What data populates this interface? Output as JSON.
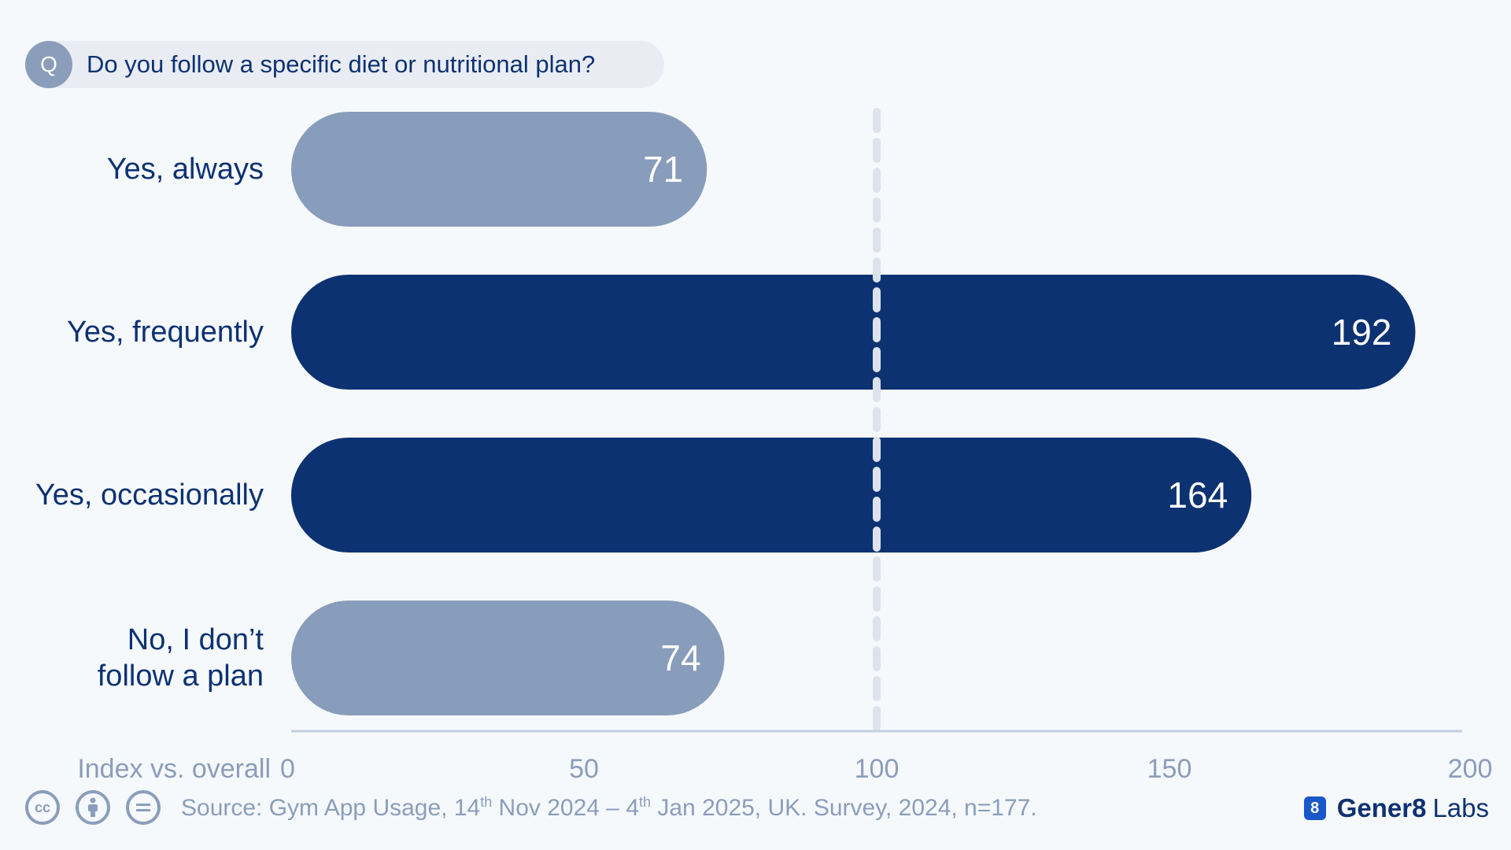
{
  "question": {
    "badge": "Q",
    "text": "Do you follow a specific diet or nutritional plan?"
  },
  "chart_data": {
    "type": "bar",
    "orientation": "horizontal",
    "categories": [
      [
        "Yes, always"
      ],
      [
        "Yes, frequently"
      ],
      [
        "Yes, occasionally"
      ],
      [
        "No, I don’t",
        "follow a plan"
      ]
    ],
    "values": [
      71,
      192,
      164,
      74
    ],
    "highlight": [
      false,
      true,
      true,
      false
    ],
    "xlabel": "Index vs. overall",
    "xlim": [
      0,
      200
    ],
    "xticks": [
      0,
      50,
      100,
      150,
      200
    ],
    "reference_line": 100,
    "colors": {
      "highlight": "#0d3272",
      "muted": "#889cbb",
      "reference": "#dde3ec",
      "axis": "#c4cfdd",
      "tick": "#8a9dbb",
      "category": "#0d3272",
      "value": "#ffffff"
    }
  },
  "footer": {
    "icons": [
      "cc-icon",
      "attribution-icon",
      "no-derivatives-icon"
    ],
    "source_parts": [
      "Source: Gym App Usage, 14",
      "th",
      " Nov 2024 – 4",
      "th",
      " Jan 2025, UK. Survey, 2024, n=177."
    ]
  },
  "brand": {
    "logo": "8",
    "name": "Gener8",
    "suffix": "Labs"
  }
}
